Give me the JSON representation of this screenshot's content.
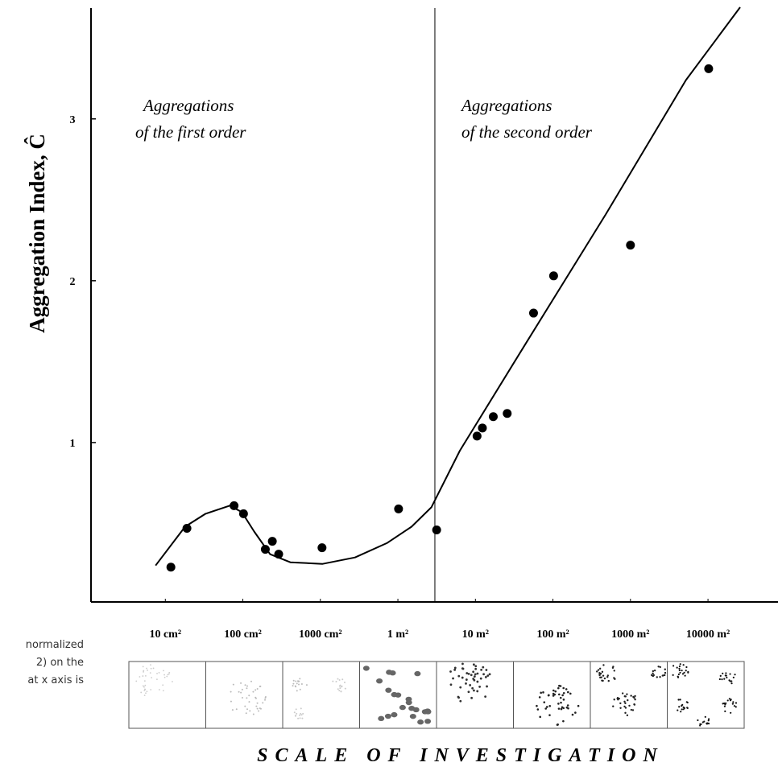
{
  "chart_data": {
    "type": "scatter",
    "y_label": "Aggregation Index,  Ĉ",
    "x_label": "SCALE OF INVESTIGATION",
    "annotations": [
      {
        "lines": [
          "Aggregations",
          "of the first order"
        ]
      },
      {
        "lines": [
          "Aggregations",
          "of the second order"
        ]
      }
    ],
    "caption_fragment": [
      "normalized",
      "2) on the",
      "at x axis is"
    ],
    "log_x": true,
    "xlim": [
      1.1,
      800000000
    ],
    "ylim": [
      0,
      3.7
    ],
    "xticks": [
      {
        "value": 10,
        "label": "10 cm²"
      },
      {
        "value": 100,
        "label": "100 cm²"
      },
      {
        "value": 1000,
        "label": "1000 cm²"
      },
      {
        "value": 10000,
        "label": "1 m²"
      },
      {
        "value": 100000,
        "label": "10 m²"
      },
      {
        "value": 1000000,
        "label": "100 m²"
      },
      {
        "value": 10000000,
        "label": "1000 m²"
      },
      {
        "value": 100000000,
        "label": "10000  m²"
      }
    ],
    "yticks": [
      1,
      2,
      3
    ],
    "vline_x": 30000,
    "series": [
      {
        "mode": "markers",
        "color": "#000000",
        "x": [
          11.8,
          19,
          77,
          102,
          195,
          240,
          290,
          1050,
          10200,
          31600,
          105000,
          123000,
          170000,
          257000,
          562000,
          1020000,
          10000000,
          102000000
        ],
        "values": [
          0.23,
          0.47,
          0.61,
          0.56,
          0.34,
          0.39,
          0.31,
          0.35,
          0.59,
          0.46,
          1.04,
          1.09,
          1.16,
          1.18,
          1.8,
          2.03,
          2.22,
          3.31
        ]
      },
      {
        "mode": "line",
        "color": "#000000",
        "x": [
          7.5,
          18,
          33,
          68,
          97,
          140,
          225,
          410,
          1070,
          2800,
          7300,
          15000,
          27000,
          63000,
          430000,
          4800000,
          52000000,
          260000000
        ],
        "values": [
          0.24,
          0.48,
          0.56,
          0.61,
          0.57,
          0.45,
          0.31,
          0.26,
          0.25,
          0.29,
          0.38,
          0.48,
          0.6,
          0.95,
          1.6,
          2.41,
          3.24,
          3.69
        ]
      }
    ]
  }
}
